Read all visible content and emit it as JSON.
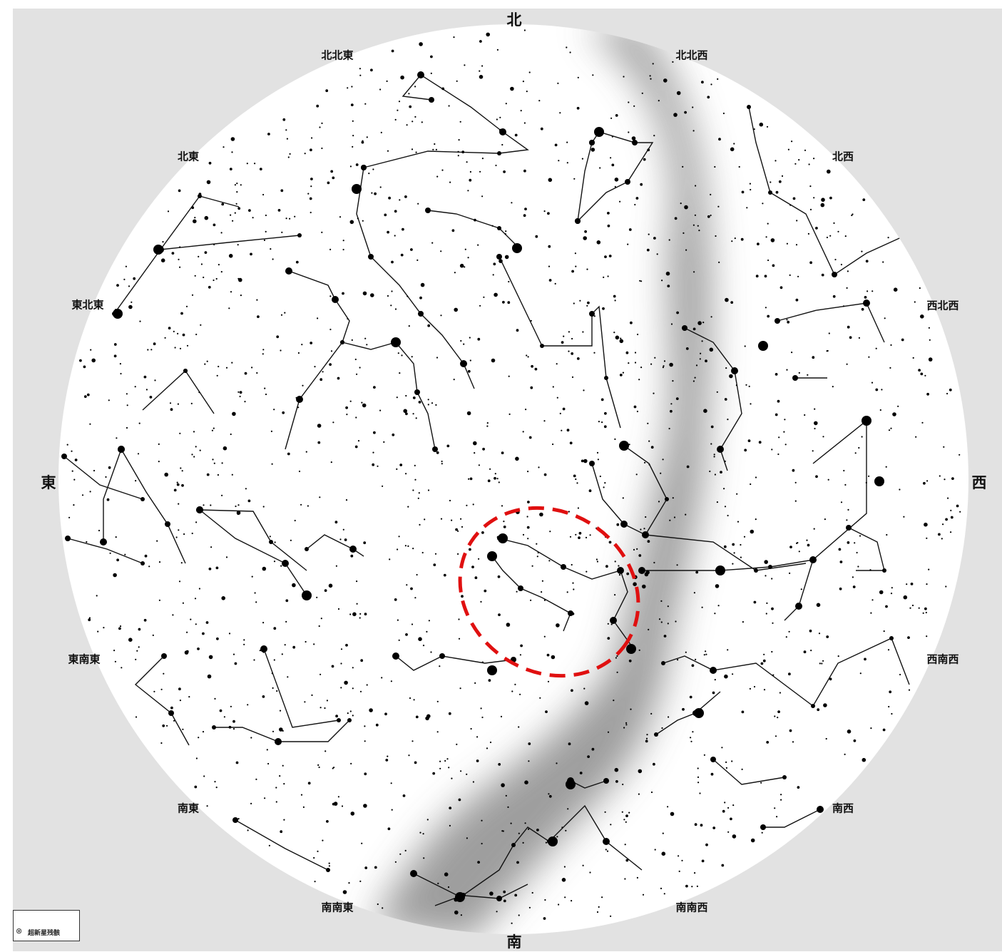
{
  "directions": {
    "n": "北",
    "nnw": "北北西",
    "nw": "北西",
    "wnw": "西北西",
    "w": "西",
    "wsw": "西南西",
    "sw": "南西",
    "ssw": "南南西",
    "s": "南",
    "sse": "南南東",
    "se": "南東",
    "ese": "東南東",
    "e": "東",
    "ene": "東北東",
    "ne": "北東",
    "nne": "北北東"
  },
  "legend": {
    "icon": "circle-cross-icon",
    "label": "超新星残骸"
  },
  "colors": {
    "background": "#e2e2e2",
    "sky": "#ffffff",
    "milky_way": "#8c8c8c",
    "stars": "#000000",
    "highlight": "#e01010"
  },
  "highlight": {
    "shape": "dashed-ellipse"
  }
}
